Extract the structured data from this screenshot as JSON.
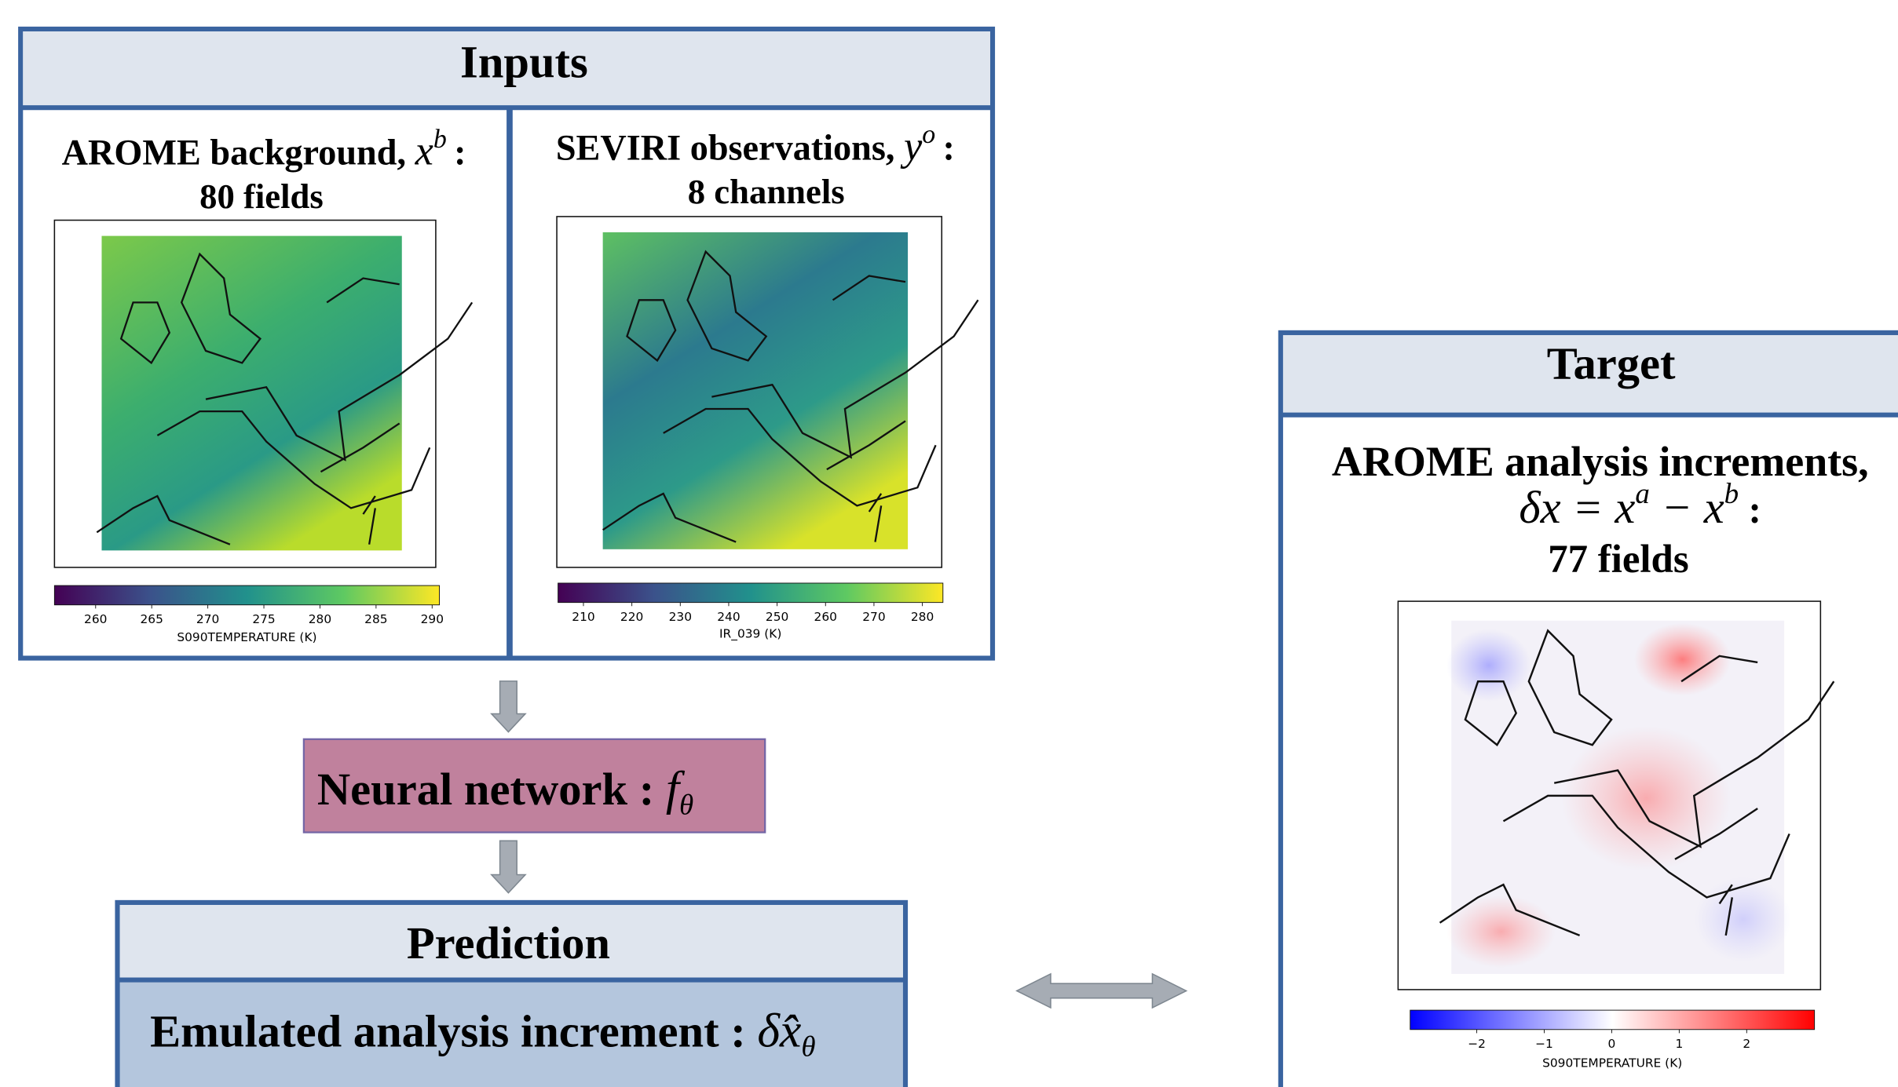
{
  "inputs": {
    "title": "Inputs",
    "panels": [
      {
        "heading": "AROME background, ",
        "symbol": "x",
        "superscript": "b",
        "suffix": ":",
        "subheading": "80 fields",
        "colorbar": {
          "ticks": [
            260,
            265,
            270,
            275,
            280,
            285,
            290
          ],
          "label": "S090TEMPERATURE (K)"
        }
      },
      {
        "heading": "SEVIRI observations, ",
        "symbol": "y",
        "superscript": "o",
        "suffix": ":",
        "subheading": "8 channels",
        "colorbar": {
          "ticks": [
            210,
            220,
            230,
            240,
            250,
            260,
            270,
            280
          ],
          "label": "IR_039 (K)"
        }
      }
    ]
  },
  "network": {
    "label": "Neural network : ",
    "symbol": "f",
    "subscript": "θ"
  },
  "prediction": {
    "title": "Prediction",
    "label": "Emulated analysis increment : ",
    "symbol": "δx̂",
    "subscript": "θ"
  },
  "target": {
    "title": "Target",
    "heading": "AROME analysis increments,",
    "equation": {
      "left": "δx = x",
      "sup_a": "a",
      "middle": " − x",
      "sup_b": "b",
      "suffix": " :"
    },
    "subheading": "77 fields",
    "colorbar": {
      "ticks": [
        {
          "value": -2,
          "label": "−2"
        },
        {
          "value": -1,
          "label": "−1"
        },
        0,
        1,
        2
      ],
      "label": "S090TEMPERATURE (K)"
    }
  }
}
